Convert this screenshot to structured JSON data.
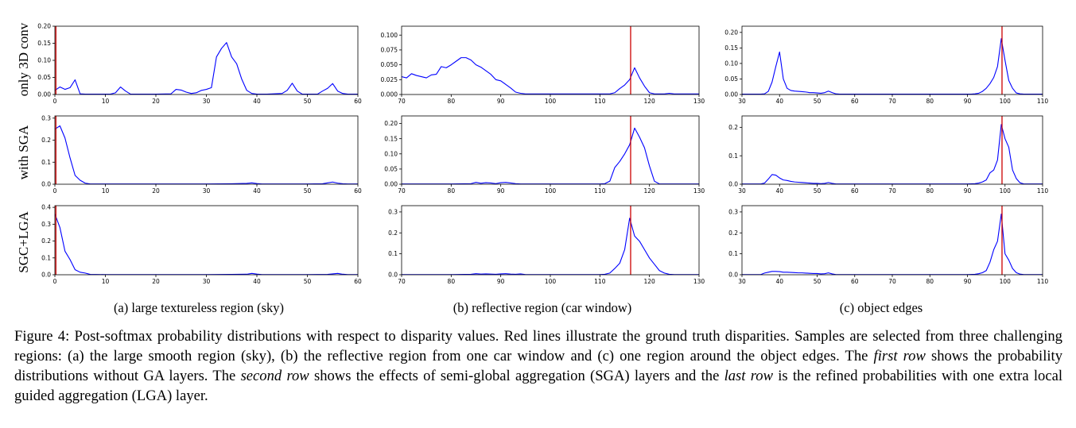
{
  "row_labels": [
    "only 3D conv",
    "with SGA",
    "SGC+LGA"
  ],
  "subfigure_captions": [
    "(a)  large textureless region (sky)",
    "(b)  reflective region (car window)",
    "(c)  object edges"
  ],
  "caption": {
    "figure_label": "Figure 4:",
    "part1": " Post-softmax probability distributions with respect to disparity values. Red lines illustrate the ground truth disparities. Samples are selected from three challenging regions: (a) the large smooth region (sky), (b) the reflective region from one car window and (c) one region around the object edges. The ",
    "italic1": "first row",
    "part2": " shows the probability distributions without GA layers. The ",
    "italic2": "second row",
    "part3": " shows the effects of semi-global aggregation (SGA) layers and the ",
    "italic3": "last row",
    "part4": " is the refined probabilities with one extra local guided aggregation (LGA) layer."
  },
  "colors": {
    "curve": "#0000ff",
    "ground_truth": "#cc0000",
    "axis": "#000000"
  },
  "chart_data": [
    {
      "id": "a1",
      "type": "line",
      "row": 0,
      "col": 0,
      "xlim": [
        0,
        60
      ],
      "ylim": [
        0,
        0.2
      ],
      "xticks": [
        0,
        10,
        20,
        30,
        40,
        50,
        60
      ],
      "xtick_labels": [
        "0",
        "10",
        "20",
        "30",
        "40",
        "50",
        "60"
      ],
      "yticks": [
        0,
        0.05,
        0.1,
        0.15,
        0.2
      ],
      "ytick_labels": [
        "0.00",
        "0.05",
        "0.10",
        "0.15",
        "0.20"
      ],
      "ground_truth": 0.2,
      "x": [
        0,
        1,
        2,
        3,
        4,
        5,
        6,
        11,
        12,
        13,
        14,
        15,
        20,
        23,
        24,
        25,
        26,
        27,
        28,
        29,
        30,
        31,
        32,
        33,
        34,
        35,
        36,
        37,
        38,
        39,
        40,
        41,
        42,
        45,
        46,
        47,
        48,
        49,
        52,
        53,
        54,
        55,
        56,
        57,
        58,
        59,
        60
      ],
      "y": [
        0.012,
        0.022,
        0.015,
        0.02,
        0.043,
        0.002,
        0.001,
        0.001,
        0.005,
        0.022,
        0.01,
        0.001,
        0.001,
        0.002,
        0.015,
        0.013,
        0.007,
        0.003,
        0.005,
        0.012,
        0.015,
        0.02,
        0.11,
        0.135,
        0.152,
        0.11,
        0.09,
        0.045,
        0.012,
        0.003,
        0.001,
        0.001,
        0.001,
        0.003,
        0.012,
        0.033,
        0.01,
        0.001,
        0.001,
        0.01,
        0.018,
        0.032,
        0.01,
        0.003,
        0.001,
        0.001,
        0.001
      ]
    },
    {
      "id": "b1",
      "type": "line",
      "row": 0,
      "col": 1,
      "xlim": [
        70,
        130
      ],
      "ylim": [
        0,
        0.115
      ],
      "xticks": [
        70,
        80,
        90,
        100,
        110,
        120,
        130
      ],
      "xtick_labels": [
        "70",
        "80",
        "90",
        "100",
        "110",
        "120",
        "130"
      ],
      "yticks": [
        0,
        0.025,
        0.05,
        0.075,
        0.1
      ],
      "ytick_labels": [
        "0.000",
        "0.025",
        "0.050",
        "0.075",
        "0.100"
      ],
      "ground_truth": 116.2,
      "x": [
        70,
        71,
        72,
        73,
        74,
        75,
        76,
        77,
        78,
        79,
        80,
        81,
        82,
        83,
        84,
        85,
        86,
        87,
        88,
        89,
        90,
        91,
        92,
        93,
        94,
        95,
        96,
        110,
        112,
        113,
        114,
        115,
        116,
        117,
        118,
        119,
        120,
        121,
        122,
        123,
        124,
        125,
        126,
        130
      ],
      "y": [
        0.03,
        0.028,
        0.035,
        0.032,
        0.03,
        0.028,
        0.033,
        0.034,
        0.047,
        0.045,
        0.05,
        0.056,
        0.062,
        0.062,
        0.058,
        0.05,
        0.046,
        0.04,
        0.034,
        0.025,
        0.023,
        0.017,
        0.011,
        0.004,
        0.002,
        0.001,
        0.001,
        0.001,
        0.001,
        0.003,
        0.01,
        0.016,
        0.025,
        0.045,
        0.028,
        0.014,
        0.003,
        0.001,
        0.001,
        0.001,
        0.002,
        0.001,
        0.001,
        0.001
      ]
    },
    {
      "id": "c1",
      "type": "line",
      "row": 0,
      "col": 2,
      "xlim": [
        30,
        110
      ],
      "ylim": [
        0,
        0.22
      ],
      "xticks": [
        30,
        40,
        50,
        60,
        70,
        80,
        90,
        100,
        110
      ],
      "xtick_labels": [
        "30",
        "40",
        "50",
        "60",
        "70",
        "80",
        "90",
        "100",
        "110"
      ],
      "yticks": [
        0,
        0.05,
        0.1,
        0.15,
        0.2
      ],
      "ytick_labels": [
        "0.00",
        "0.05",
        "0.10",
        "0.15",
        "0.20"
      ],
      "ground_truth": 99.2,
      "x": [
        30,
        35,
        36,
        37,
        38,
        39,
        40,
        41,
        42,
        43,
        44,
        45,
        46,
        47,
        48,
        49,
        50,
        51,
        52,
        53,
        54,
        55,
        56,
        60,
        70,
        80,
        90,
        91,
        92,
        93,
        94,
        95,
        96,
        97,
        98,
        99,
        100,
        101,
        102,
        103,
        104,
        105,
        110
      ],
      "y": [
        0.001,
        0.001,
        0.002,
        0.01,
        0.04,
        0.09,
        0.137,
        0.05,
        0.02,
        0.013,
        0.011,
        0.01,
        0.009,
        0.008,
        0.006,
        0.006,
        0.005,
        0.004,
        0.006,
        0.011,
        0.006,
        0.002,
        0.001,
        0.001,
        0.001,
        0.001,
        0.001,
        0.001,
        0.002,
        0.004,
        0.01,
        0.02,
        0.035,
        0.055,
        0.09,
        0.18,
        0.11,
        0.045,
        0.02,
        0.005,
        0.002,
        0.001,
        0.001
      ]
    },
    {
      "id": "a2",
      "type": "line",
      "row": 1,
      "col": 0,
      "xlim": [
        0,
        60
      ],
      "ylim": [
        0,
        0.31
      ],
      "xticks": [
        0,
        10,
        20,
        30,
        40,
        50,
        60
      ],
      "xtick_labels": [
        "0",
        "10",
        "20",
        "30",
        "40",
        "50",
        "60"
      ],
      "yticks": [
        0,
        0.1,
        0.2,
        0.3
      ],
      "ytick_labels": [
        "0.0",
        "0.1",
        "0.2",
        "0.3"
      ],
      "ground_truth": 0.2,
      "x": [
        0,
        1,
        2,
        3,
        4,
        5,
        6,
        7,
        10,
        15,
        20,
        25,
        30,
        35,
        38,
        39,
        40,
        41,
        45,
        50,
        53,
        54,
        55,
        56,
        57,
        58,
        60
      ],
      "y": [
        0.25,
        0.265,
        0.21,
        0.12,
        0.04,
        0.018,
        0.005,
        0.001,
        0.001,
        0.001,
        0.001,
        0.001,
        0.001,
        0.002,
        0.004,
        0.006,
        0.003,
        0.001,
        0.001,
        0.001,
        0.002,
        0.006,
        0.01,
        0.005,
        0.002,
        0.001,
        0.001
      ]
    },
    {
      "id": "b2",
      "type": "line",
      "row": 1,
      "col": 1,
      "xlim": [
        70,
        130
      ],
      "ylim": [
        0,
        0.225
      ],
      "xticks": [
        70,
        80,
        90,
        100,
        110,
        120,
        130
      ],
      "xtick_labels": [
        "70",
        "80",
        "90",
        "100",
        "110",
        "120",
        "130"
      ],
      "yticks": [
        0,
        0.05,
        0.1,
        0.15,
        0.2
      ],
      "ytick_labels": [
        "0.00",
        "0.05",
        "0.10",
        "0.15",
        "0.20"
      ],
      "ground_truth": 116.2,
      "x": [
        70,
        80,
        84,
        85,
        86,
        87,
        88,
        89,
        90,
        91,
        92,
        93,
        94,
        95,
        100,
        110,
        111,
        112,
        113,
        114,
        115,
        116,
        117,
        118,
        119,
        120,
        121,
        122,
        125,
        130
      ],
      "y": [
        0.001,
        0.001,
        0.002,
        0.006,
        0.003,
        0.005,
        0.004,
        0.002,
        0.005,
        0.006,
        0.004,
        0.002,
        0.001,
        0.001,
        0.001,
        0.001,
        0.002,
        0.01,
        0.055,
        0.075,
        0.1,
        0.13,
        0.185,
        0.155,
        0.12,
        0.06,
        0.01,
        0.001,
        0.001,
        0.001
      ]
    },
    {
      "id": "c2",
      "type": "line",
      "row": 1,
      "col": 2,
      "xlim": [
        30,
        110
      ],
      "ylim": [
        0,
        0.24
      ],
      "xticks": [
        30,
        40,
        50,
        60,
        70,
        80,
        90,
        100,
        110
      ],
      "xtick_labels": [
        "30",
        "40",
        "50",
        "60",
        "70",
        "80",
        "90",
        "100",
        "110"
      ],
      "yticks": [
        0,
        0.1,
        0.2
      ],
      "ytick_labels": [
        "0.0",
        "0.1",
        "0.2"
      ],
      "ground_truth": 99.2,
      "x": [
        30,
        35,
        36,
        37,
        38,
        39,
        40,
        41,
        42,
        43,
        44,
        45,
        46,
        47,
        48,
        49,
        50,
        51,
        52,
        53,
        54,
        55,
        56,
        60,
        70,
        80,
        90,
        92,
        93,
        94,
        95,
        96,
        97,
        98,
        99,
        100,
        101,
        102,
        103,
        104,
        105,
        110
      ],
      "y": [
        0.001,
        0.001,
        0.004,
        0.018,
        0.034,
        0.032,
        0.022,
        0.015,
        0.013,
        0.01,
        0.008,
        0.007,
        0.006,
        0.005,
        0.004,
        0.003,
        0.003,
        0.002,
        0.003,
        0.006,
        0.003,
        0.001,
        0.001,
        0.001,
        0.001,
        0.001,
        0.001,
        0.002,
        0.004,
        0.008,
        0.015,
        0.04,
        0.05,
        0.085,
        0.21,
        0.16,
        0.13,
        0.05,
        0.02,
        0.005,
        0.001,
        0.001
      ]
    },
    {
      "id": "a3",
      "type": "line",
      "row": 2,
      "col": 0,
      "xlim": [
        0,
        60
      ],
      "ylim": [
        0,
        0.41
      ],
      "xticks": [
        0,
        10,
        20,
        30,
        40,
        50,
        60
      ],
      "xtick_labels": [
        "0",
        "10",
        "20",
        "30",
        "40",
        "50",
        "60"
      ],
      "yticks": [
        0,
        0.1,
        0.2,
        0.3,
        0.4
      ],
      "ytick_labels": [
        "0.0",
        "0.1",
        "0.2",
        "0.3",
        "0.4"
      ],
      "ground_truth": 0.2,
      "x": [
        0,
        1,
        2,
        3,
        4,
        5,
        6,
        7,
        10,
        15,
        20,
        25,
        30,
        35,
        38,
        39,
        40,
        41,
        45,
        50,
        54,
        55,
        56,
        57,
        58,
        60
      ],
      "y": [
        0.36,
        0.28,
        0.14,
        0.09,
        0.03,
        0.015,
        0.01,
        0.002,
        0.001,
        0.001,
        0.001,
        0.001,
        0.001,
        0.002,
        0.003,
        0.008,
        0.004,
        0.001,
        0.001,
        0.001,
        0.002,
        0.005,
        0.008,
        0.003,
        0.001,
        0.001
      ]
    },
    {
      "id": "b3",
      "type": "line",
      "row": 2,
      "col": 1,
      "xlim": [
        70,
        130
      ],
      "ylim": [
        0,
        0.33
      ],
      "xticks": [
        70,
        80,
        90,
        100,
        110,
        120,
        130
      ],
      "xtick_labels": [
        "70",
        "80",
        "90",
        "100",
        "110",
        "120",
        "130"
      ],
      "yticks": [
        0,
        0.1,
        0.2,
        0.3
      ],
      "ytick_labels": [
        "0.0",
        "0.1",
        "0.2",
        "0.3"
      ],
      "ground_truth": 116.2,
      "x": [
        70,
        80,
        84,
        85,
        86,
        87,
        88,
        89,
        90,
        91,
        92,
        93,
        94,
        95,
        100,
        110,
        111,
        112,
        113,
        114,
        115,
        116,
        117,
        118,
        119,
        120,
        121,
        122,
        123,
        124,
        125,
        130
      ],
      "y": [
        0.001,
        0.001,
        0.002,
        0.005,
        0.003,
        0.004,
        0.003,
        0.002,
        0.004,
        0.005,
        0.003,
        0.002,
        0.004,
        0.001,
        0.001,
        0.001,
        0.002,
        0.008,
        0.03,
        0.055,
        0.12,
        0.27,
        0.185,
        0.16,
        0.12,
        0.08,
        0.05,
        0.02,
        0.008,
        0.002,
        0.001,
        0.001
      ]
    },
    {
      "id": "c3",
      "type": "line",
      "row": 2,
      "col": 2,
      "xlim": [
        30,
        110
      ],
      "ylim": [
        0,
        0.33
      ],
      "xticks": [
        30,
        40,
        50,
        60,
        70,
        80,
        90,
        100,
        110
      ],
      "xtick_labels": [
        "30",
        "40",
        "50",
        "60",
        "70",
        "80",
        "90",
        "100",
        "110"
      ],
      "yticks": [
        0,
        0.1,
        0.2,
        0.3
      ],
      "ytick_labels": [
        "0.0",
        "0.1",
        "0.2",
        "0.3"
      ],
      "ground_truth": 99.2,
      "x": [
        30,
        35,
        36,
        37,
        38,
        39,
        40,
        41,
        42,
        43,
        44,
        45,
        46,
        47,
        48,
        49,
        50,
        51,
        52,
        53,
        54,
        55,
        60,
        70,
        80,
        90,
        92,
        93,
        94,
        95,
        96,
        97,
        98,
        99,
        100,
        101,
        102,
        103,
        104,
        105,
        110
      ],
      "y": [
        0.001,
        0.001,
        0.008,
        0.012,
        0.016,
        0.016,
        0.015,
        0.012,
        0.012,
        0.011,
        0.01,
        0.009,
        0.009,
        0.008,
        0.007,
        0.006,
        0.006,
        0.004,
        0.005,
        0.009,
        0.004,
        0.001,
        0.001,
        0.001,
        0.001,
        0.001,
        0.002,
        0.005,
        0.01,
        0.02,
        0.06,
        0.12,
        0.16,
        0.29,
        0.1,
        0.07,
        0.03,
        0.01,
        0.003,
        0.001,
        0.001
      ]
    }
  ]
}
